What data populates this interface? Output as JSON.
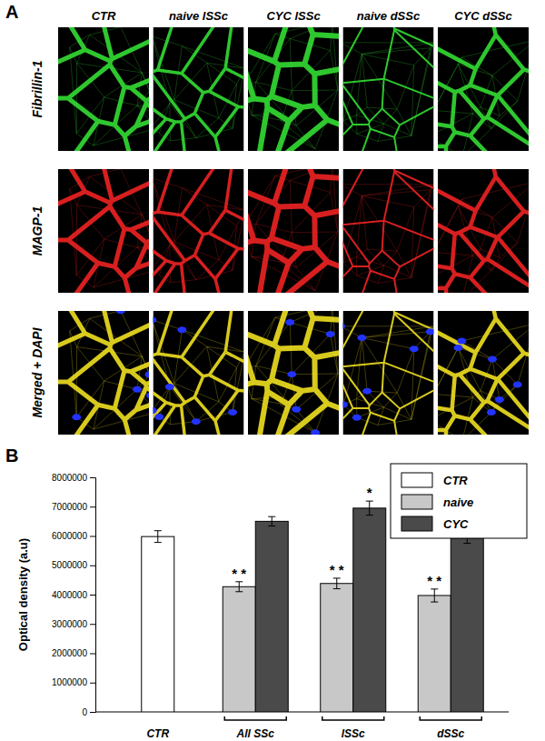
{
  "figure": {
    "panel_labels": [
      "A",
      "B"
    ],
    "panel_a": {
      "columns": [
        "CTR",
        "naive lSSc",
        "CYC lSSc",
        "naive dSSc",
        "CYC dSSc"
      ],
      "rows": [
        "Fibrillin-1",
        "MAGP-1",
        "Merged + DAPI"
      ]
    }
  },
  "chart_data": {
    "type": "bar",
    "y_label": "Optical density (a.u)",
    "categories": [
      "CTR",
      "All SSc",
      "lSSc",
      "dSSc"
    ],
    "series": [
      {
        "name": "CTR",
        "color": "#ffffff",
        "values": [
          5980000,
          null,
          null,
          null
        ],
        "errors": [
          200000,
          null,
          null,
          null
        ],
        "significance": [
          null,
          null,
          null,
          null
        ]
      },
      {
        "name": "naive",
        "color": "#c8c8c8",
        "values": [
          null,
          4270000,
          4380000,
          3970000
        ],
        "errors": [
          null,
          170000,
          180000,
          220000
        ],
        "significance": [
          null,
          "* *",
          "* *",
          "* *"
        ]
      },
      {
        "name": "CYC",
        "color": "#4a4a4a",
        "values": [
          null,
          6500000,
          6950000,
          5930000
        ],
        "errors": [
          null,
          160000,
          240000,
          180000
        ],
        "significance": [
          null,
          null,
          "*",
          null
        ]
      }
    ],
    "ylim": [
      0,
      8000000
    ],
    "yticks": [
      0,
      1000000,
      2000000,
      3000000,
      4000000,
      5000000,
      6000000,
      7000000,
      8000000
    ],
    "legend": "top-right",
    "grid": false
  }
}
